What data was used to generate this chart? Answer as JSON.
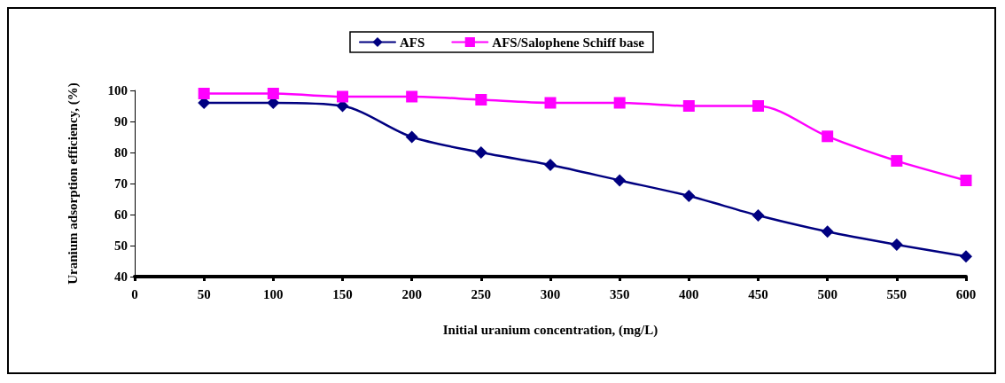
{
  "chart_data": {
    "type": "line",
    "xlabel": "Initial uranium concentration, (mg/L)",
    "ylabel": "Uranium adsorption efficiency, (%)",
    "x": [
      50,
      100,
      150,
      200,
      250,
      300,
      350,
      400,
      450,
      500,
      550,
      600
    ],
    "series": [
      {
        "name": "AFS",
        "color": "#000080",
        "marker": "diamond",
        "values": [
          96,
          96,
          95,
          85,
          80,
          76,
          71,
          66,
          59.7,
          54.5,
          50.3,
          46.5
        ]
      },
      {
        "name": "AFS/Salophene Schiff base",
        "color": "#ff00ff",
        "marker": "square",
        "values": [
          99,
          99,
          98,
          98,
          97,
          96,
          96,
          95,
          95,
          85.2,
          77.3,
          71
        ]
      }
    ],
    "xlim": [
      0,
      600
    ],
    "xticks": [
      0,
      50,
      100,
      150,
      200,
      250,
      300,
      350,
      400,
      450,
      500,
      550,
      600
    ],
    "ylim": [
      40,
      100
    ],
    "yticks": [
      40,
      50,
      60,
      70,
      80,
      90,
      100
    ],
    "grid": false,
    "legend": "top",
    "line_style": "solid"
  }
}
